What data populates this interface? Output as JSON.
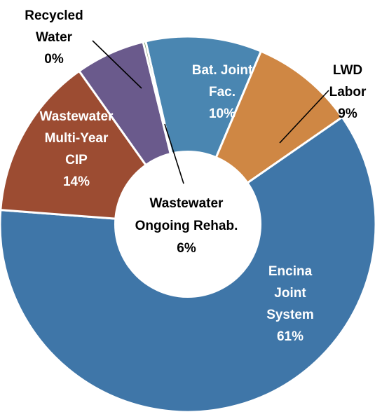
{
  "chart_data": {
    "type": "pie",
    "donut": true,
    "title": "",
    "legend": "none",
    "categories": [
      "Bat. Joint Fac.",
      "LWD Labor",
      "Encina Joint System",
      "Wastewater Multi-Year CIP",
      "Wastewater Ongoing Rehab.",
      "Recycled Water"
    ],
    "values": [
      10,
      9,
      61,
      14,
      6,
      0
    ],
    "slices": [
      {
        "key": "bat",
        "name": "Bat. Joint Fac.",
        "value": 10,
        "color": "#4a86b1",
        "label_lines": [
          "Bat. Joint",
          "Fac.",
          "10%"
        ]
      },
      {
        "key": "lwd",
        "name": "LWD Labor",
        "value": 9,
        "color": "#cf8744",
        "label_lines": [
          "LWD",
          "Labor",
          "9%"
        ]
      },
      {
        "key": "encina",
        "name": "Encina Joint System",
        "value": 61,
        "color": "#3f76a8",
        "label_lines": [
          "Encina",
          "Joint",
          "System",
          "61%"
        ]
      },
      {
        "key": "multiyear",
        "name": "Wastewater Multi-Year CIP",
        "value": 14,
        "color": "#9c4c32",
        "label_lines": [
          "Wastewater",
          "Multi-Year",
          "CIP",
          "14%"
        ]
      },
      {
        "key": "rehab",
        "name": "Wastewater Ongoing Rehab.",
        "value": 6,
        "color": "#6a5a8c",
        "label_lines": [
          "Wastewater",
          "Ongoing Rehab.",
          "6%"
        ]
      },
      {
        "key": "recycled",
        "name": "Recycled Water",
        "value": 0,
        "color": "#6a8a4a",
        "label_lines": [
          "Recycled",
          "Water",
          "0%"
        ]
      }
    ]
  }
}
